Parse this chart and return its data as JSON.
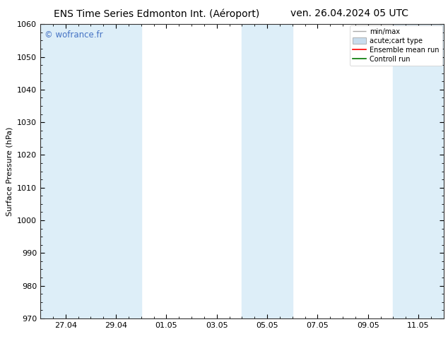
{
  "title_left": "ENS Time Series Edmonton Int. (Aéroport)",
  "title_right": "ven. 26.04.2024 05 UTC",
  "ylabel": "Surface Pressure (hPa)",
  "ylim": [
    970,
    1060
  ],
  "yticks": [
    970,
    980,
    990,
    1000,
    1010,
    1020,
    1030,
    1040,
    1050,
    1060
  ],
  "xlabel_ticks": [
    "27.04",
    "29.04",
    "01.05",
    "03.05",
    "05.05",
    "07.05",
    "09.05",
    "11.05"
  ],
  "x_tick_positions": [
    1,
    3,
    5,
    7,
    9,
    11,
    13,
    15
  ],
  "shade_bands": [
    {
      "xmin": 0,
      "xmax": 2,
      "color": "#ddeef8"
    },
    {
      "xmin": 2,
      "xmax": 4,
      "color": "#ddeef8"
    },
    {
      "xmin": 8,
      "xmax": 10,
      "color": "#ddeef8"
    },
    {
      "xmin": 14,
      "xmax": 16,
      "color": "#ddeef8"
    }
  ],
  "xlim": [
    0,
    16
  ],
  "watermark": "© wofrance.fr",
  "watermark_color": "#4472c4",
  "background_color": "#ffffff",
  "plot_bg_color": "#ffffff",
  "legend_labels": [
    "min/max",
    "acute;cart type",
    "Ensemble mean run",
    "Controll run"
  ],
  "legend_line_color": "#aaaaaa",
  "legend_patch_color": "#c8dced",
  "legend_red": "#ff0000",
  "legend_green": "#007700",
  "title_fontsize": 10,
  "axis_label_fontsize": 8,
  "tick_fontsize": 8
}
